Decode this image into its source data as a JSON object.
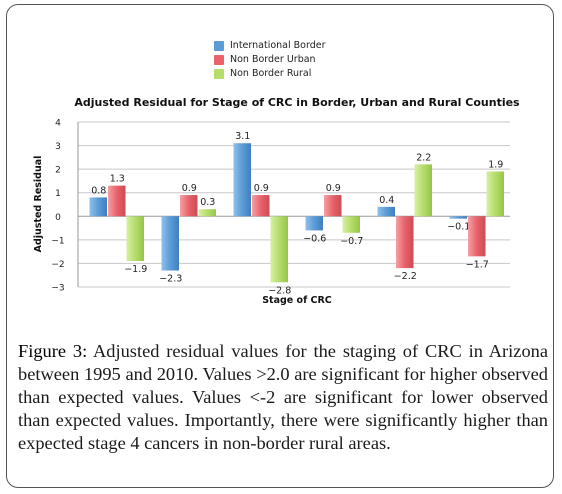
{
  "chart_data": {
    "type": "bar",
    "title": "Adjusted Residual for Stage of CRC in Border, Urban and Rural Counties",
    "xlabel": "Stage of CRC",
    "ylabel": "Adjusted Residual",
    "ylim": [
      -3,
      4
    ],
    "yticks": [
      "4",
      "3",
      "2",
      "1",
      "0",
      "−1",
      "−2",
      "−3"
    ],
    "legend_position": "top-center",
    "groups": 6,
    "series": [
      {
        "name": "International Border",
        "color": "#5b9bd5",
        "values": [
          0.8,
          -2.3,
          3.1,
          -0.6,
          0.4,
          -0.1
        ],
        "labels": [
          "0.8",
          "−2.3",
          "3.1",
          "−0.6",
          "0.4",
          "−0.1"
        ]
      },
      {
        "name": "Non Border Urban",
        "color": "#e8636b",
        "values": [
          1.3,
          0.9,
          0.9,
          0.9,
          -2.2,
          -1.7
        ],
        "labels": [
          "1.3",
          "0.9",
          "0.9",
          "0.9",
          "−2.2",
          "−1.7"
        ]
      },
      {
        "name": "Non Border Rural",
        "color": "#b5dd6a",
        "values": [
          -1.9,
          0.3,
          -2.8,
          -0.7,
          2.2,
          1.9
        ],
        "labels": [
          "−1.9",
          "0.3",
          "−2.8",
          "−0.7",
          "2.2",
          "1.9"
        ]
      }
    ]
  },
  "caption": {
    "label": "Figure 3:",
    "text": " Adjusted residual values for the staging of CRC in Arizona between 1995 and 2010. Values >2.0 are significant for higher observed than expected values. Values <-2 are significant for lower observed than expected values. Importantly, there were significantly higher than expected stage 4 cancers in non-border rural areas."
  }
}
